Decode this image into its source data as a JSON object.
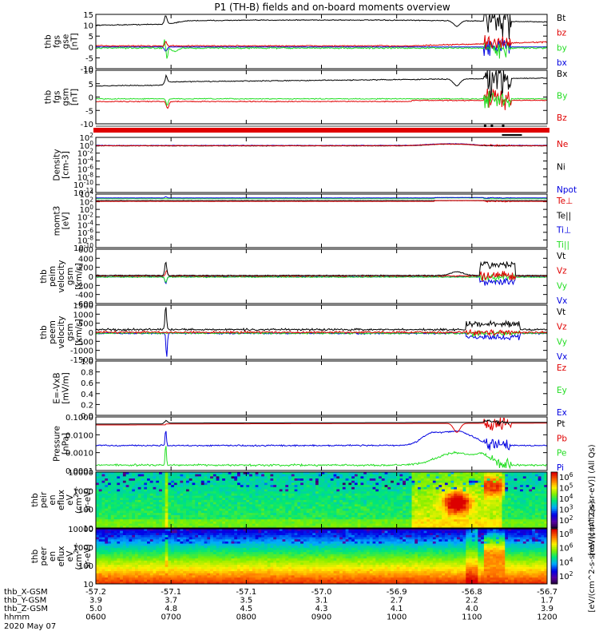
{
  "title": "P1 (TH-B) fields and on-board moments overview",
  "colors": {
    "black": "#000000",
    "red": "#e00000",
    "green": "#22dd22",
    "blue": "#0000e0"
  },
  "chart_data": [
    {
      "id": "fgs",
      "type": "line",
      "ylabel": [
        "thb",
        "fgs",
        "gse",
        "[nT]"
      ],
      "yticks": [
        "15",
        "10",
        "5",
        "0",
        "-5",
        "-10"
      ],
      "ylim": [
        -10,
        15
      ],
      "legend": [
        {
          "label": "Bt",
          "color": "#000000"
        },
        {
          "label": "bz",
          "color": "#e00000"
        },
        {
          "label": "by",
          "color": "#22dd22"
        },
        {
          "label": "bx",
          "color": "#0000e0"
        }
      ]
    },
    {
      "id": "fgs_gsm",
      "type": "line",
      "ylabel": [
        "thb",
        "fgs",
        "gsm",
        "[nT]"
      ],
      "yticks": [
        "10",
        "5",
        "0",
        "-5",
        "-10"
      ],
      "ylim": [
        -12,
        12
      ],
      "legend": [
        {
          "label": "Bx",
          "color": "#000000"
        },
        {
          "label": "By",
          "color": "#22dd22"
        },
        {
          "label": "Bz",
          "color": "#e00000"
        }
      ]
    },
    {
      "id": "density",
      "type": "line",
      "ylabel": [
        "Density",
        "[cm-3]"
      ],
      "yticks": [
        "10^2",
        "10^0",
        "10^-2",
        "10^-4",
        "10^-6",
        "10^-8",
        "10^-10",
        "10^-12"
      ],
      "ylim": [
        -12,
        2
      ],
      "legend": [
        {
          "label": "Ne",
          "color": "#e00000"
        },
        {
          "label": "Ni",
          "color": "#000000"
        },
        {
          "label": "Npot",
          "color": "#0000e0"
        }
      ]
    },
    {
      "id": "temp",
      "type": "line",
      "ylabel": [
        "momt3",
        "[eV]"
      ],
      "yticks": [
        "10^4",
        "10^2",
        "10^0",
        "10^-2",
        "10^-4",
        "10^-6",
        "10^-8",
        "10^-10"
      ],
      "ylim": [
        -10,
        4
      ],
      "legend": [
        {
          "label": "Te⊥",
          "color": "#e00000"
        },
        {
          "label": "Te||",
          "color": "#000000"
        },
        {
          "label": "Ti⊥",
          "color": "#0000e0"
        },
        {
          "label": "Ti||",
          "color": "#22dd22"
        }
      ]
    },
    {
      "id": "peim",
      "type": "line",
      "ylabel": [
        "thb",
        "peim",
        "velocity",
        "gsm",
        "[km/s]"
      ],
      "yticks": [
        "600",
        "400",
        "200",
        "0",
        "-200",
        "-400",
        "-600"
      ],
      "ylim": [
        -600,
        600
      ],
      "legend": [
        {
          "label": "Vt",
          "color": "#000000"
        },
        {
          "label": "Vz",
          "color": "#e00000"
        },
        {
          "label": "Vy",
          "color": "#22dd22"
        },
        {
          "label": "Vx",
          "color": "#0000e0"
        }
      ]
    },
    {
      "id": "peem",
      "type": "line",
      "ylabel": [
        "thb",
        "peem",
        "velocity",
        "gsm",
        "[km/s]"
      ],
      "yticks": [
        "1500",
        "1000",
        "500",
        "0",
        "-500",
        "-1000",
        "-1500"
      ],
      "ylim": [
        -1500,
        1500
      ],
      "legend": [
        {
          "label": "Vt",
          "color": "#000000"
        },
        {
          "label": "Vz",
          "color": "#e00000"
        },
        {
          "label": "Vy",
          "color": "#22dd22"
        },
        {
          "label": "Vx",
          "color": "#0000e0"
        }
      ]
    },
    {
      "id": "efield",
      "type": "line",
      "ylabel": [
        "E=-VxB",
        "[mV/m]"
      ],
      "yticks": [
        "1.0",
        "0.8",
        "0.6",
        "0.4",
        "0.2",
        "0.0"
      ],
      "ylim": [
        0,
        1
      ],
      "legend": [
        {
          "label": "Ez",
          "color": "#e00000"
        },
        {
          "label": "Ey",
          "color": "#22dd22"
        },
        {
          "label": "Ex",
          "color": "#0000e0"
        }
      ]
    },
    {
      "id": "pressure",
      "type": "line",
      "ylabel": [
        "Pressure",
        "[nPa]"
      ],
      "yticks": [
        "0.1000",
        "0.0100",
        "0.0010",
        "0.0001"
      ],
      "ylim": [
        -4,
        -1
      ],
      "legend": [
        {
          "label": "Pt",
          "color": "#000000"
        },
        {
          "label": "Pb",
          "color": "#e00000"
        },
        {
          "label": "Pe",
          "color": "#22dd22"
        },
        {
          "label": "Pi",
          "color": "#0000e0"
        }
      ]
    },
    {
      "id": "peir",
      "type": "heatmap",
      "ylabel": [
        "thb",
        "peir",
        "en",
        "eflux",
        "eV",
        "(cm^2-s-",
        "sr-eV)"
      ],
      "yticks": [
        "10000",
        "1000",
        "100",
        "10"
      ],
      "ylim": [
        1,
        4.1
      ],
      "colorbar": {
        "ticks": [
          "10^6",
          "10^5",
          "10^4",
          "10^3",
          "10^2"
        ],
        "label": "[eV/(cm^2-s-sr-eV)] (All Qs)"
      }
    },
    {
      "id": "peer",
      "type": "heatmap",
      "ylabel": [
        "thb",
        "peer",
        "en",
        "eflux",
        "eV",
        "(cm^2-s-",
        "sr-eV)"
      ],
      "yticks": [
        "10000",
        "1000",
        "100",
        "10"
      ],
      "ylim": [
        0.9,
        4.1
      ],
      "colorbar": {
        "ticks": [
          "10^8",
          "10^6",
          "10^4",
          "10^2"
        ],
        "label": "[eV/(cm^2-s-sr-eV)] (All Qs)"
      }
    }
  ],
  "xaxis": {
    "rows": [
      {
        "label": "thb_X-GSM",
        "values": [
          "-57.2",
          "-57.1",
          "-57.1",
          "-57.0",
          "-56.9",
          "-56.8",
          "-56.7"
        ]
      },
      {
        "label": "thb_Y-GSM",
        "values": [
          "3.9",
          "3.7",
          "3.5",
          "3.1",
          "2.7",
          "2.2",
          "1.7"
        ]
      },
      {
        "label": "thb_Z-GSM",
        "values": [
          "5.0",
          "4.8",
          "4.5",
          "4.3",
          "4.1",
          "4.0",
          "3.9"
        ]
      },
      {
        "label": "hhmm",
        "values": [
          "0600",
          "0700",
          "0800",
          "0900",
          "1000",
          "1100",
          "1200"
        ]
      }
    ],
    "date": "2020 May 07"
  }
}
